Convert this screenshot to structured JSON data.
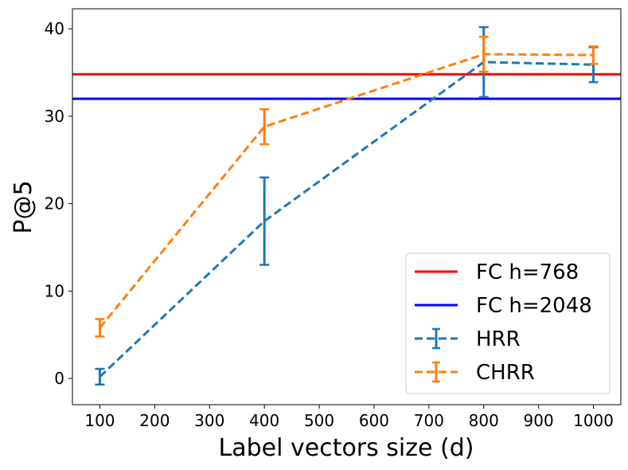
{
  "chart_data": {
    "type": "line",
    "title": "",
    "xlabel": "Label vectors size (d)",
    "ylabel": "P@5",
    "xlim": [
      50,
      1050
    ],
    "ylim": [
      -3,
      42.3
    ],
    "xticks": [
      100,
      200,
      300,
      400,
      500,
      600,
      700,
      800,
      900,
      1000
    ],
    "yticks": [
      0,
      10,
      20,
      30,
      40
    ],
    "hlines": [
      {
        "name": "FC h=768",
        "value": 34.8,
        "color": "#ff0000"
      },
      {
        "name": "FC h=2048",
        "value": 32.0,
        "color": "#0000ff"
      }
    ],
    "series": [
      {
        "name": "HRR",
        "color": "#1f77b4",
        "linestyle": "dashed",
        "x": [
          100,
          400,
          800,
          1000
        ],
        "values": [
          0.2,
          18.0,
          36.2,
          35.9
        ],
        "errors": [
          0.9,
          5.0,
          4.0,
          2.0
        ]
      },
      {
        "name": "CHRR",
        "color": "#ff7f0e",
        "linestyle": "dashed",
        "x": [
          100,
          400,
          800,
          1000
        ],
        "values": [
          5.8,
          28.8,
          37.1,
          37.0
        ],
        "errors": [
          1.0,
          2.0,
          2.0,
          1.0
        ]
      }
    ],
    "legend": {
      "position": "lower-right",
      "entries": [
        "FC h=768",
        "FC h=2048",
        "HRR",
        "CHRR"
      ]
    },
    "grid": false
  }
}
